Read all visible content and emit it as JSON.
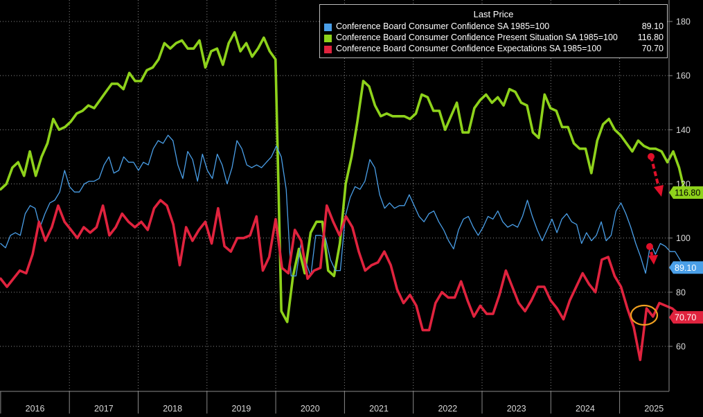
{
  "chart_data": {
    "type": "line",
    "legend_header": "Last Price",
    "legend_position": "top-right",
    "y_ticks": [
      60,
      80,
      100,
      120,
      140,
      160,
      180
    ],
    "ylim": [
      45,
      185
    ],
    "x_labels": [
      "2016",
      "2017",
      "2018",
      "2019",
      "2020",
      "2021",
      "2022",
      "2023",
      "2024",
      "2025"
    ],
    "grid": true,
    "series": [
      {
        "name": "Conference Board Consumer Confidence SA 1985=100",
        "last_value": "89.10",
        "color": "#4a9fe8",
        "start": 2016.0,
        "values": [
          98.0,
          96.4,
          101.0,
          102.0,
          101.0,
          109.0,
          112.0,
          111.0,
          104.0,
          109.0,
          113.0,
          114.0,
          117.0,
          125.0,
          119.0,
          117.0,
          117.0,
          120.0,
          121.0,
          121.0,
          122.0,
          127.0,
          130.0,
          124.0,
          125.0,
          130.0,
          128.0,
          128.0,
          125.0,
          128.0,
          127.0,
          133.0,
          136.0,
          135.0,
          138.0,
          136.0,
          127.0,
          122.0,
          132.0,
          129.0,
          121.0,
          131.0,
          125.0,
          122.0,
          131.0,
          127.0,
          120.0,
          126.0,
          136.0,
          133.0,
          127.0,
          126.0,
          127.0,
          126.0,
          128.0,
          130.0,
          134.0,
          130.0,
          118.0,
          86.0,
          86.0,
          98.0,
          91.0,
          86.0,
          101.0,
          101.0,
          100.0,
          92.0,
          88.0,
          88.0,
          108.0,
          115.0,
          119.0,
          118.0,
          121.0,
          129.0,
          126.0,
          116.0,
          111.0,
          113.0,
          111.0,
          112.0,
          112.0,
          116.0,
          112.0,
          108.0,
          106.0,
          109.0,
          110.0,
          106.0,
          103.0,
          99.0,
          96.0,
          103.0,
          107.0,
          108.0,
          104.0,
          101.0,
          104.0,
          108.0,
          107.0,
          110.0,
          106.0,
          104.0,
          105.0,
          104.0,
          108.0,
          114.0,
          108.0,
          103.0,
          99.0,
          103.0,
          107.0,
          102.0,
          107.0,
          109.0,
          106.0,
          105.0,
          98.0,
          102.0,
          99.0,
          101.0,
          106.0,
          99.0,
          101.0,
          110.0,
          113.0,
          109.0,
          104.0,
          98.0,
          93.0,
          87.0,
          98.0,
          94.0,
          98.0,
          97.0,
          95.0,
          95.0,
          92.0,
          89.1
        ]
      },
      {
        "name": "Conference Board Consumer Confidence Present Situation SA 1985=100",
        "last_value": "116.80",
        "color": "#8ed21b",
        "start": 2016.0,
        "values": [
          118.0,
          120.0,
          126.0,
          128.0,
          123.0,
          132.0,
          123.0,
          130.0,
          135.0,
          144.0,
          140.0,
          141.0,
          143.0,
          146.0,
          147.0,
          149.0,
          148.0,
          151.0,
          154.0,
          157.0,
          157.0,
          155.0,
          161.0,
          158.0,
          158.0,
          162.0,
          163.0,
          166.0,
          172.0,
          170.0,
          172.0,
          173.0,
          170.0,
          170.0,
          173.0,
          163.0,
          169.0,
          170.0,
          164.0,
          172.0,
          176.0,
          169.0,
          172.0,
          167.0,
          170.0,
          174.0,
          169.0,
          166.0,
          73.0,
          69.0,
          86.0,
          96.0,
          87.0,
          102.0,
          106.0,
          106.0,
          88.0,
          86.0,
          98.0,
          120.0,
          130.0,
          143.0,
          158.0,
          156.0,
          149.0,
          145.0,
          146.0,
          145.0,
          145.0,
          145.0,
          144.0,
          146.0,
          153.0,
          152.0,
          147.0,
          147.0,
          140.0,
          145.0,
          150.0,
          139.0,
          139.0,
          148.0,
          151.0,
          153.0,
          150.0,
          152.0,
          149.0,
          155.0,
          154.0,
          150.0,
          149.0,
          139.0,
          137.0,
          153.0,
          148.0,
          147.0,
          141.0,
          141.0,
          135.0,
          133.0,
          133.0,
          124.0,
          136.0,
          142.0,
          144.0,
          140.0,
          138.0,
          135.0,
          132.0,
          136.0,
          134.0,
          133.0,
          133.0,
          132.0,
          128.0,
          132.0,
          126.0,
          116.8
        ]
      },
      {
        "name": "Conference Board Consumer Confidence Expectations SA 1985=100",
        "last_value": "70.70",
        "color": "#e0233e",
        "start": 2016.0,
        "values": [
          85.0,
          82.0,
          85.0,
          88.0,
          87.0,
          94.0,
          106.0,
          99.0,
          104.0,
          112.0,
          106.0,
          103.0,
          100.0,
          104.0,
          102.0,
          104.0,
          112.0,
          101.0,
          104.0,
          109.0,
          106.0,
          104.0,
          106.0,
          103.0,
          111.0,
          114.0,
          112.0,
          105.0,
          90.0,
          104.0,
          99.0,
          103.0,
          106.0,
          98.0,
          111.0,
          97.0,
          95.0,
          100.0,
          100.0,
          101.0,
          108.0,
          88.0,
          93.0,
          107.0,
          89.0,
          87.0,
          103.0,
          99.0,
          85.0,
          88.0,
          89.0,
          112.0,
          106.0,
          101.0,
          108.0,
          104.0,
          95.0,
          88.0,
          90.0,
          91.0,
          95.0,
          90.0,
          81.0,
          76.0,
          79.0,
          75.0,
          66.0,
          66.0,
          76.0,
          80.0,
          78.0,
          78.0,
          84.0,
          77.0,
          71.0,
          75.0,
          72.0,
          72.0,
          79.0,
          88.0,
          82.0,
          76.0,
          73.0,
          77.0,
          82.0,
          82.0,
          77.0,
          74.0,
          70.0,
          77.0,
          82.0,
          87.0,
          83.0,
          80.0,
          92.0,
          93.0,
          86.0,
          82.0,
          74.0,
          67.0,
          55.0,
          74.0,
          71.0,
          76.0,
          75.0,
          74.0,
          72.0,
          70.7
        ]
      }
    ],
    "annotations": [
      "down-arrow Present Situation",
      "down-arrow Confidence SA",
      "circle Expectations latest"
    ]
  }
}
